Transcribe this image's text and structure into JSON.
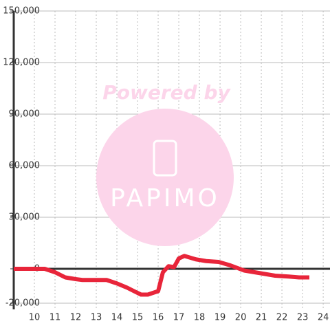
{
  "chart_data": {
    "type": "line",
    "watermark": "Powered by",
    "logo_text": "PAPIMO",
    "x": [
      9,
      10.5,
      11,
      11.5,
      12,
      12.33,
      13.5,
      14,
      14.5,
      14.83,
      15.17,
      15.5,
      16,
      16.23,
      16.5,
      16.77,
      17,
      17.27,
      17.83,
      18.33,
      18.93,
      19.5,
      20.17,
      20.67,
      21.17,
      21.67,
      22.33,
      22.83,
      23.33
    ],
    "series": [
      {
        "color": "#e8253a",
        "values": [
          0,
          0,
          -2000,
          -5000,
          -6000,
          -6500,
          -6500,
          -8500,
          -11000,
          -13000,
          -15000,
          -15000,
          -13000,
          -2000,
          1500,
          1000,
          6000,
          7500,
          5500,
          4500,
          4000,
          2000,
          -1000,
          -2000,
          -3000,
          -4000,
          -4500,
          -5000,
          -5000
        ]
      }
    ],
    "xlim": [
      9,
      24.33
    ],
    "xticks": [
      10,
      11,
      12,
      13,
      14,
      15,
      16,
      17,
      18,
      19,
      20,
      21,
      22,
      23,
      24
    ],
    "ylim": [
      -20000,
      150000
    ],
    "yticks": [
      {
        "value": -20000,
        "label": "-20,000"
      },
      0,
      {
        "value": 30000,
        "label": "30,000"
      },
      {
        "value": 60000,
        "label": "60,000"
      },
      {
        "value": 90000,
        "label": "90,000"
      },
      {
        "value": 120000,
        "label": "120,000"
      },
      {
        "value": 150000,
        "label": "150,000"
      }
    ],
    "grid": true
  }
}
